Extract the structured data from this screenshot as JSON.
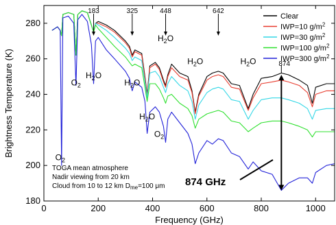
{
  "chart_data": {
    "type": "line",
    "xlabel": "Frequency (GHz)",
    "ylabel": "Brightness Temperature (K)",
    "xlim": [
      0,
      1070
    ],
    "ylim": [
      180,
      290
    ],
    "xticks": [
      "0",
      "200",
      "400",
      "600",
      "800",
      "1000"
    ],
    "yticks": [
      "180",
      "200",
      "220",
      "240",
      "260",
      "280"
    ],
    "grid": false,
    "legend_position": "top-right",
    "series": [
      {
        "name": "Clear",
        "color": "#000000",
        "x": [
          30,
          50,
          60,
          65,
          70,
          90,
          110,
          118,
          125,
          140,
          160,
          175,
          183,
          190,
          200,
          230,
          260,
          300,
          315,
          325,
          335,
          360,
          372,
          380,
          390,
          410,
          425,
          440,
          448,
          456,
          470,
          500,
          530,
          545,
          557,
          570,
          600,
          620,
          642,
          660,
          690,
          720,
          752,
          770,
          800,
          840,
          874,
          900,
          940,
          970,
          988,
          1000,
          1040,
          1070
        ],
        "y": [
          276,
          278,
          276,
          273,
          285,
          286,
          285,
          262,
          285,
          287,
          286,
          279,
          275,
          280,
          281,
          279,
          276,
          270,
          267,
          262,
          265,
          263,
          250,
          240,
          256,
          258,
          255,
          248,
          245,
          251,
          257,
          252,
          250,
          242,
          230,
          240,
          250,
          252,
          253,
          252,
          246,
          245,
          232,
          240,
          249,
          250,
          252,
          251,
          248,
          245,
          235,
          244,
          246,
          246
        ]
      },
      {
        "name": "IWP=10 g/m²",
        "color": "#e8392b",
        "x": [
          30,
          50,
          60,
          65,
          70,
          90,
          110,
          118,
          125,
          140,
          160,
          175,
          183,
          190,
          200,
          230,
          260,
          300,
          315,
          325,
          335,
          360,
          372,
          380,
          390,
          410,
          425,
          440,
          448,
          456,
          470,
          500,
          530,
          545,
          557,
          570,
          600,
          620,
          642,
          660,
          690,
          720,
          752,
          770,
          800,
          840,
          874,
          900,
          940,
          970,
          988,
          1000,
          1040,
          1070
        ],
        "y": [
          276,
          278,
          276,
          273,
          285,
          286,
          285,
          262,
          285,
          287,
          286,
          279,
          275,
          280,
          280,
          278,
          275,
          269,
          266,
          261,
          264,
          262,
          249,
          239,
          255,
          257,
          254,
          247,
          244,
          250,
          255,
          250,
          248,
          241,
          229,
          239,
          248,
          250,
          251,
          250,
          244,
          243,
          231,
          238,
          246,
          247,
          248,
          247,
          245,
          241,
          233,
          240,
          242,
          242
        ]
      },
      {
        "name": "IWP=30 g/m²",
        "color": "#33d7e6",
        "x": [
          30,
          50,
          60,
          65,
          70,
          90,
          110,
          118,
          125,
          140,
          160,
          175,
          183,
          190,
          200,
          230,
          260,
          300,
          315,
          325,
          335,
          360,
          372,
          380,
          390,
          410,
          425,
          440,
          448,
          456,
          470,
          500,
          530,
          545,
          557,
          570,
          600,
          620,
          642,
          660,
          690,
          720,
          752,
          770,
          800,
          840,
          874,
          900,
          940,
          970,
          988,
          1000,
          1040,
          1070
        ],
        "y": [
          276,
          278,
          276,
          273,
          285,
          286,
          285,
          262,
          285,
          287,
          286,
          279,
          275,
          280,
          279,
          276,
          272,
          266,
          263,
          259,
          261,
          259,
          247,
          238,
          252,
          253,
          250,
          244,
          241,
          246,
          250,
          245,
          242,
          236,
          226,
          234,
          241,
          243,
          244,
          243,
          237,
          236,
          226,
          231,
          237,
          238,
          238,
          237,
          235,
          232,
          226,
          231,
          232,
          232
        ]
      },
      {
        "name": "IWP=100 g/m²",
        "color": "#2ee02e",
        "x": [
          30,
          50,
          60,
          65,
          70,
          90,
          110,
          118,
          125,
          140,
          160,
          175,
          183,
          190,
          200,
          230,
          260,
          300,
          315,
          325,
          335,
          360,
          372,
          380,
          390,
          410,
          425,
          440,
          448,
          456,
          470,
          500,
          530,
          545,
          557,
          570,
          600,
          620,
          642,
          660,
          690,
          720,
          752,
          770,
          800,
          840,
          874,
          900,
          940,
          970,
          988,
          1000,
          1040,
          1070
        ],
        "y": [
          276,
          278,
          276,
          273,
          285,
          286,
          285,
          262,
          285,
          287,
          286,
          279,
          275,
          279,
          277,
          272,
          267,
          261,
          258,
          256,
          257,
          255,
          244,
          236,
          246,
          246,
          243,
          238,
          235,
          239,
          240,
          235,
          232,
          228,
          221,
          226,
          229,
          230,
          231,
          230,
          225,
          224,
          219,
          221,
          224,
          225,
          225,
          224,
          222,
          220,
          216,
          219,
          219,
          219
        ]
      },
      {
        "name": "IWP=300 g/m²",
        "color": "#2020d8",
        "x": [
          30,
          50,
          60,
          65,
          70,
          90,
          110,
          118,
          125,
          140,
          160,
          175,
          183,
          190,
          200,
          230,
          260,
          300,
          315,
          325,
          335,
          360,
          372,
          380,
          390,
          410,
          425,
          440,
          448,
          456,
          470,
          500,
          530,
          545,
          557,
          570,
          600,
          620,
          642,
          660,
          690,
          720,
          752,
          770,
          800,
          840,
          874,
          900,
          940,
          970,
          988,
          1000,
          1040,
          1070
        ],
        "y": [
          276,
          278,
          276,
          200,
          283,
          284,
          280,
          245,
          282,
          285,
          281,
          268,
          246,
          270,
          272,
          265,
          260,
          253,
          249,
          242,
          247,
          244,
          236,
          218,
          230,
          233,
          230,
          222,
          213,
          226,
          230,
          224,
          218,
          212,
          201,
          207,
          214,
          212,
          215,
          214,
          207,
          205,
          198,
          202,
          197,
          195,
          186,
          190,
          193,
          193,
          190,
          196,
          200,
          201
        ]
      }
    ],
    "line_markers": [
      {
        "label": "183",
        "x": 183
      },
      {
        "label": "325",
        "x": 325
      },
      {
        "label": "448",
        "x": 448
      },
      {
        "label": "642",
        "x": 642
      },
      {
        "label": "874",
        "x": 874
      }
    ],
    "absorber_labels": [
      {
        "text": "O",
        "sub": "2",
        "x": 60,
        "y": 203
      },
      {
        "text": "O",
        "sub": "2",
        "x": 118,
        "y": 245
      },
      {
        "text": "H",
        "sub": "2",
        "tail": "O",
        "x": 183,
        "y": 249
      },
      {
        "text": "H",
        "sub": "2",
        "tail": "O",
        "x": 325,
        "y": 245
      },
      {
        "text": "H",
        "sub": "2",
        "tail": "O",
        "x": 380,
        "y": 226
      },
      {
        "text": "O",
        "sub": "2",
        "x": 424,
        "y": 216
      },
      {
        "text": "H",
        "sub": "2",
        "tail": "O",
        "x": 448,
        "y": 270
      },
      {
        "text": "H",
        "sub": "2",
        "tail": "O",
        "x": 557,
        "y": 257
      },
      {
        "text": "H",
        "sub": "2",
        "tail": "O",
        "x": 752,
        "y": 257
      }
    ],
    "notes": {
      "line1": "TOGA mean atmosphere",
      "line2": "Nadir viewing from 20 km",
      "line3": "Cloud from 10 to 12 km",
      "dme_prefix": "D",
      "dme_sub": "me",
      "dme_value": "=100 μm"
    },
    "callout": {
      "label": "874 GHz",
      "x": 874,
      "y_top": 251,
      "y_bottom": 186
    }
  }
}
